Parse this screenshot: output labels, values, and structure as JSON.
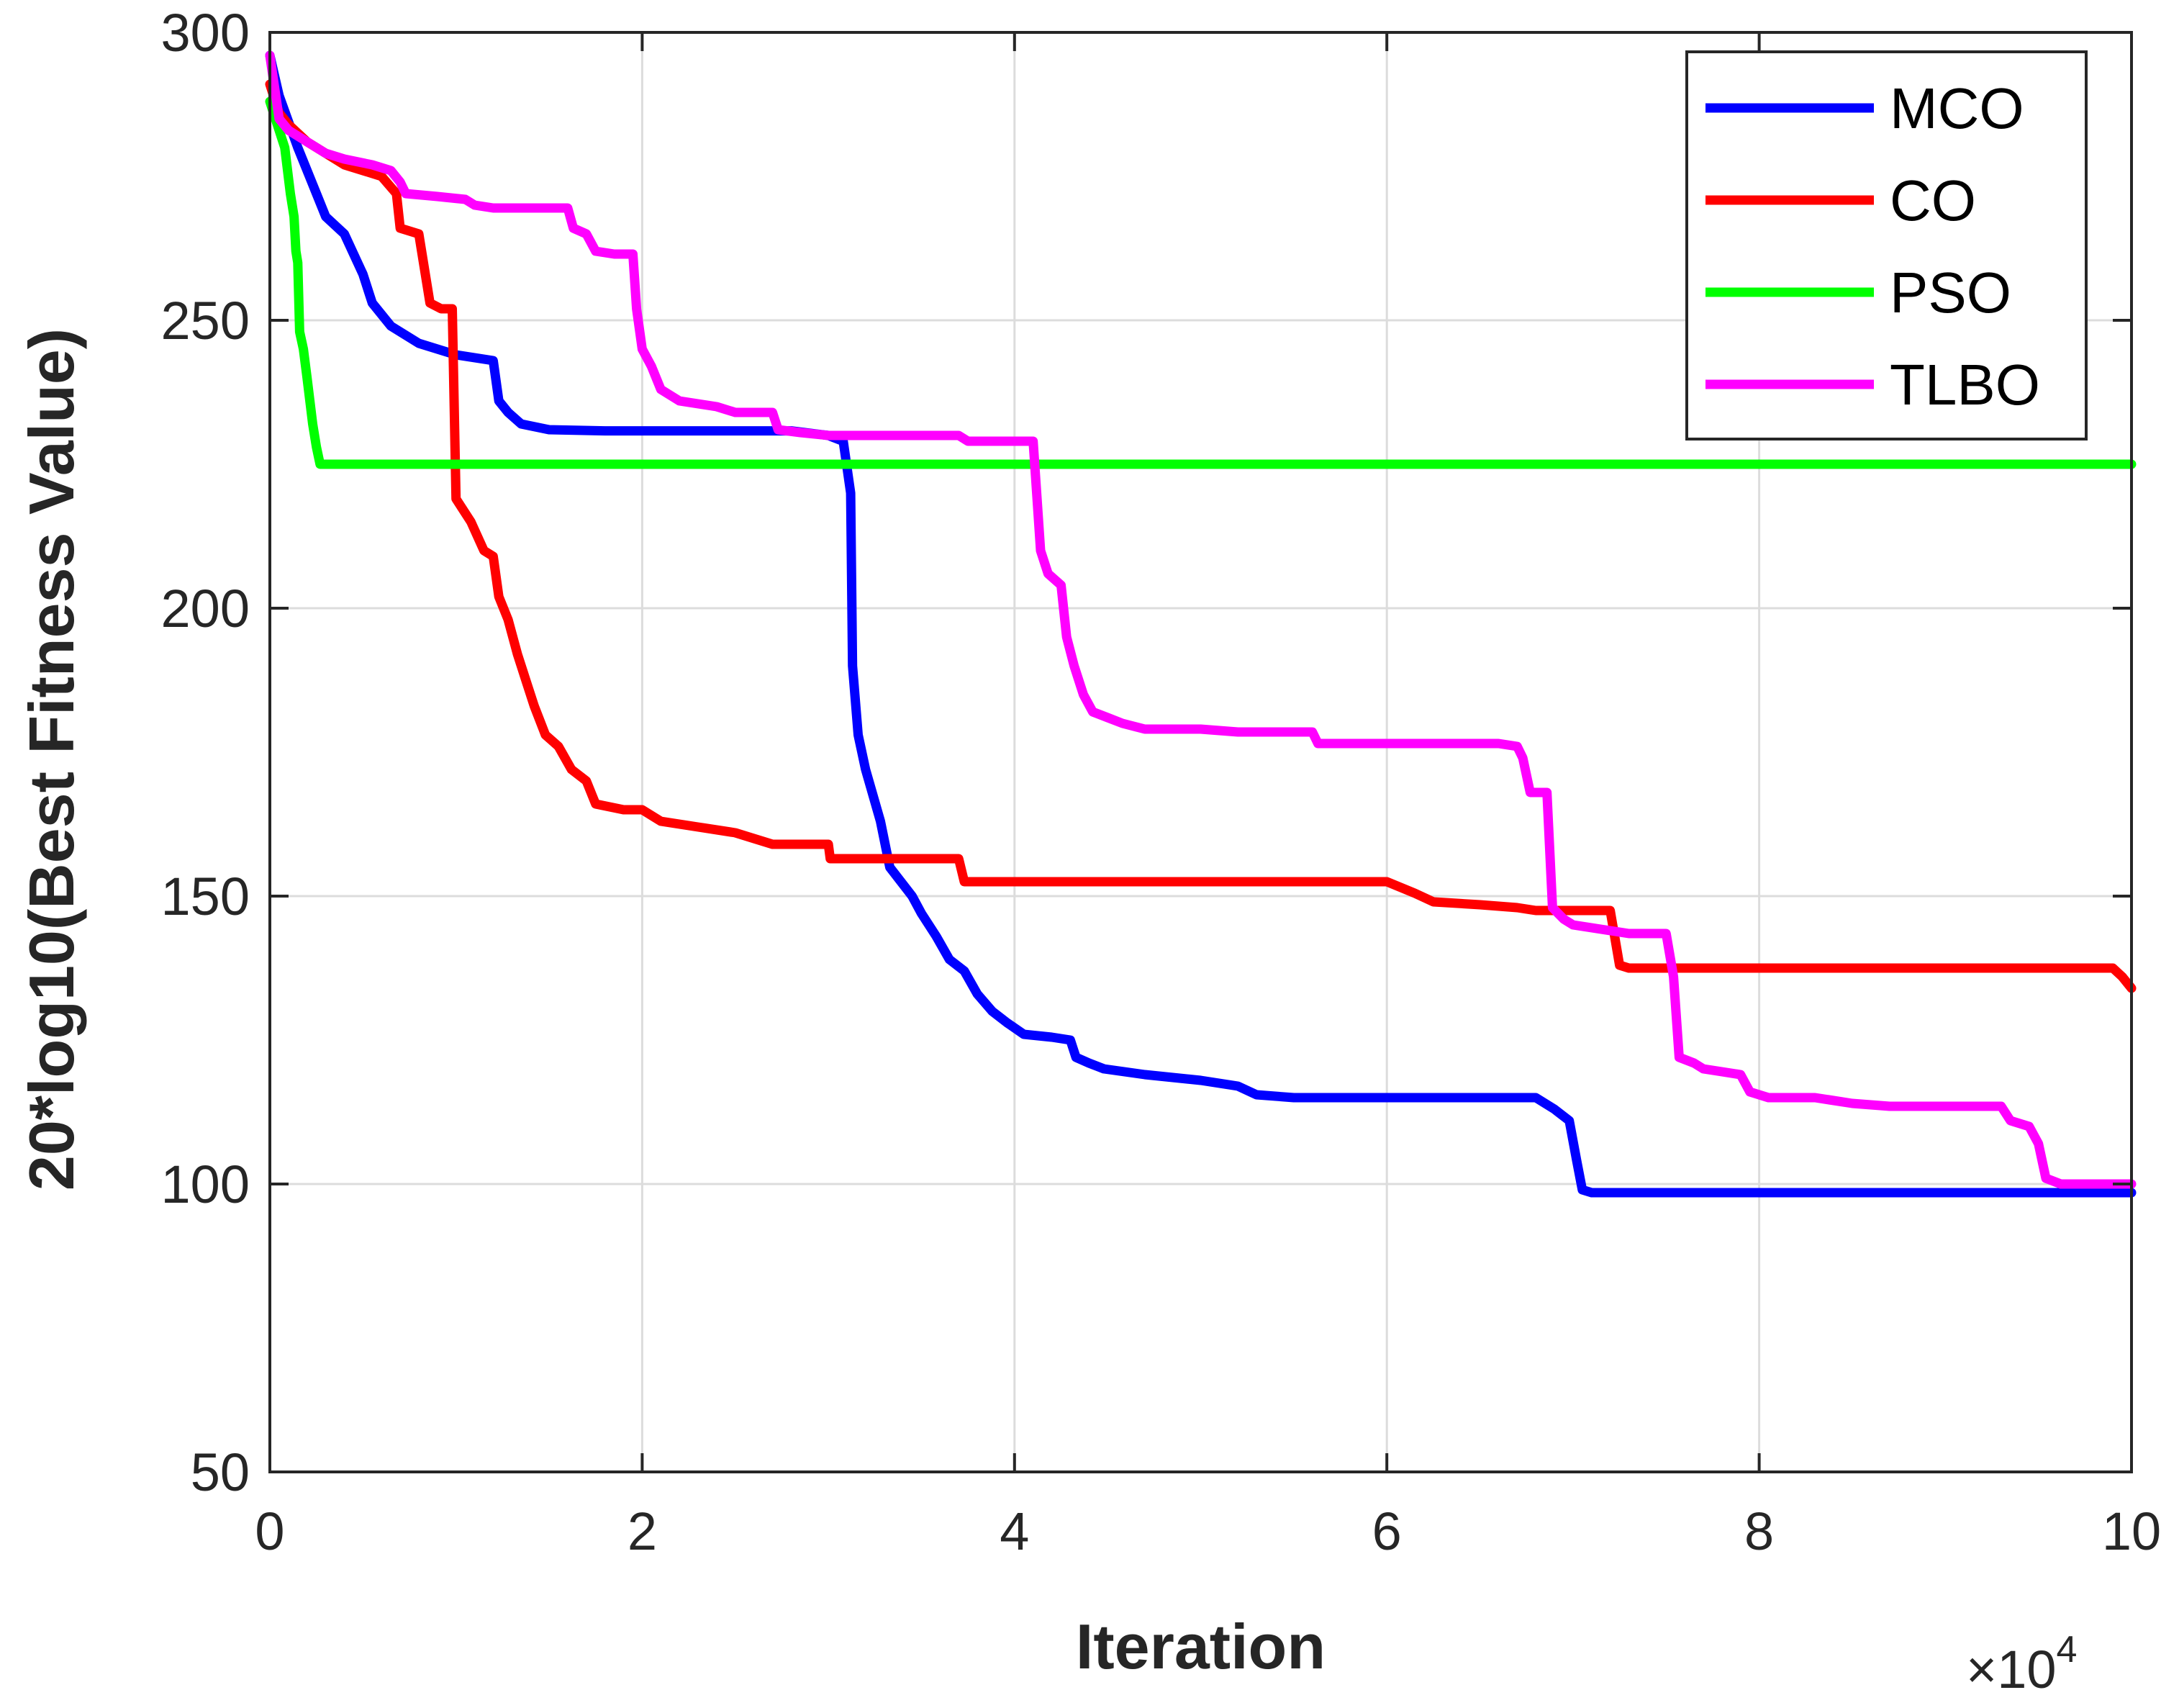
{
  "chart_data": {
    "type": "line",
    "xlabel": "Iteration",
    "ylabel": "20*log10(Best Fitness Value)",
    "xlim": [
      0,
      100000
    ],
    "ylim": [
      50,
      300
    ],
    "x_ticks": [
      0,
      20000,
      40000,
      60000,
      80000,
      100000
    ],
    "x_tick_labels": [
      "0",
      "2",
      "4",
      "6",
      "8",
      "10"
    ],
    "x_exponent_label": {
      "base": "×10",
      "power": "4"
    },
    "y_ticks": [
      50,
      100,
      150,
      200,
      250,
      300
    ],
    "y_tick_labels": [
      "50",
      "100",
      "150",
      "200",
      "250",
      "300"
    ],
    "grid": true,
    "legend_position": "top-right",
    "series": [
      {
        "name": "MCO",
        "color": "#0000ff",
        "points": [
          [
            0,
            296
          ],
          [
            500,
            289
          ],
          [
            1500,
            280
          ],
          [
            2500,
            272
          ],
          [
            3000,
            268
          ],
          [
            4000,
            265
          ],
          [
            5000,
            258
          ],
          [
            5500,
            253
          ],
          [
            6500,
            249
          ],
          [
            8000,
            246
          ],
          [
            10000,
            244
          ],
          [
            12000,
            243
          ],
          [
            12300,
            236
          ],
          [
            12800,
            234
          ],
          [
            13500,
            232
          ],
          [
            15000,
            231
          ],
          [
            18000,
            230.8
          ],
          [
            20000,
            230.8
          ],
          [
            25000,
            230.8
          ],
          [
            28000,
            230.8
          ],
          [
            30000,
            230
          ],
          [
            30800,
            229
          ],
          [
            31200,
            220
          ],
          [
            31300,
            190
          ],
          [
            31600,
            178
          ],
          [
            32000,
            172
          ],
          [
            32800,
            163
          ],
          [
            33300,
            155
          ],
          [
            34500,
            150
          ],
          [
            35000,
            147
          ],
          [
            35800,
            143
          ],
          [
            36500,
            139
          ],
          [
            37300,
            137
          ],
          [
            38000,
            133
          ],
          [
            38800,
            130
          ],
          [
            39600,
            128
          ],
          [
            40500,
            126
          ],
          [
            42000,
            125.5
          ],
          [
            43000,
            125
          ],
          [
            43300,
            122
          ],
          [
            44000,
            121
          ],
          [
            44800,
            120
          ],
          [
            47000,
            119
          ],
          [
            50000,
            118
          ],
          [
            52000,
            117
          ],
          [
            53000,
            115.5
          ],
          [
            55000,
            115
          ],
          [
            60000,
            115
          ],
          [
            65000,
            115
          ],
          [
            68000,
            115
          ],
          [
            69000,
            113
          ],
          [
            69800,
            111
          ],
          [
            70200,
            104
          ],
          [
            70500,
            99
          ],
          [
            71000,
            98.5
          ],
          [
            75000,
            98.5
          ],
          [
            80000,
            98.5
          ],
          [
            90000,
            98.5
          ],
          [
            100000,
            98.5
          ]
        ]
      },
      {
        "name": "CO",
        "color": "#ff0000",
        "points": [
          [
            0,
            291
          ],
          [
            500,
            286
          ],
          [
            1000,
            284
          ],
          [
            2000,
            281
          ],
          [
            3000,
            279
          ],
          [
            4000,
            277
          ],
          [
            5000,
            276
          ],
          [
            6000,
            275
          ],
          [
            6800,
            272
          ],
          [
            7000,
            266
          ],
          [
            8000,
            265
          ],
          [
            8600,
            253
          ],
          [
            9200,
            252
          ],
          [
            9800,
            252
          ],
          [
            10000,
            219
          ],
          [
            10800,
            215
          ],
          [
            11500,
            210
          ],
          [
            12000,
            209
          ],
          [
            12300,
            202
          ],
          [
            12800,
            198
          ],
          [
            13300,
            192
          ],
          [
            13800,
            187
          ],
          [
            14200,
            183
          ],
          [
            14800,
            178
          ],
          [
            15500,
            176
          ],
          [
            16200,
            172
          ],
          [
            17000,
            170
          ],
          [
            17500,
            166
          ],
          [
            19000,
            165
          ],
          [
            20000,
            165
          ],
          [
            21000,
            163
          ],
          [
            23000,
            162
          ],
          [
            25000,
            161
          ],
          [
            26000,
            160
          ],
          [
            27000,
            159
          ],
          [
            30000,
            159
          ],
          [
            30100,
            156.5
          ],
          [
            32000,
            156.5
          ],
          [
            35000,
            156.5
          ],
          [
            37000,
            156.5
          ],
          [
            37300,
            152.5
          ],
          [
            40000,
            152.5
          ],
          [
            50000,
            152.5
          ],
          [
            60000,
            152.5
          ],
          [
            61500,
            150.5
          ],
          [
            62500,
            149
          ],
          [
            65000,
            148.5
          ],
          [
            67000,
            148
          ],
          [
            68000,
            147.5
          ],
          [
            72000,
            147.5
          ],
          [
            72500,
            138
          ],
          [
            73000,
            137.5
          ],
          [
            75000,
            137.5
          ],
          [
            80000,
            137.5
          ],
          [
            90000,
            137.5
          ],
          [
            99000,
            137.5
          ],
          [
            99500,
            136
          ],
          [
            100000,
            134
          ]
        ]
      },
      {
        "name": "PSO",
        "color": "#00ff00",
        "points": [
          [
            0,
            288
          ],
          [
            500,
            283
          ],
          [
            800,
            280
          ],
          [
            1100,
            272
          ],
          [
            1300,
            268
          ],
          [
            1400,
            262
          ],
          [
            1500,
            260
          ],
          [
            1600,
            248
          ],
          [
            1800,
            245
          ],
          [
            2000,
            240
          ],
          [
            2300,
            232
          ],
          [
            2500,
            228
          ],
          [
            2700,
            225
          ],
          [
            3500,
            225
          ],
          [
            5000,
            225
          ],
          [
            10000,
            225
          ],
          [
            20000,
            225
          ],
          [
            30000,
            225
          ],
          [
            40000,
            225
          ],
          [
            50000,
            225
          ],
          [
            60000,
            225
          ],
          [
            70000,
            225
          ],
          [
            80000,
            225
          ],
          [
            90000,
            225
          ],
          [
            100000,
            225
          ]
        ]
      },
      {
        "name": "TLBO",
        "color": "#ff00ff",
        "points": [
          [
            0,
            296
          ],
          [
            500,
            285
          ],
          [
            1000,
            283
          ],
          [
            2000,
            281
          ],
          [
            3000,
            279
          ],
          [
            4000,
            278
          ],
          [
            5500,
            277
          ],
          [
            6500,
            276
          ],
          [
            7000,
            274
          ],
          [
            7300,
            272
          ],
          [
            9000,
            271.5
          ],
          [
            10500,
            271
          ],
          [
            11000,
            270
          ],
          [
            12000,
            269.5
          ],
          [
            16000,
            269.5
          ],
          [
            16300,
            266
          ],
          [
            17000,
            265
          ],
          [
            17500,
            262
          ],
          [
            18500,
            261.5
          ],
          [
            19500,
            261.5
          ],
          [
            19700,
            252
          ],
          [
            20000,
            245
          ],
          [
            20500,
            242
          ],
          [
            21000,
            238
          ],
          [
            22000,
            236
          ],
          [
            24000,
            235
          ],
          [
            25000,
            234
          ],
          [
            27000,
            234
          ],
          [
            27300,
            231
          ],
          [
            28500,
            230.5
          ],
          [
            30000,
            230
          ],
          [
            33000,
            230
          ],
          [
            37000,
            230
          ],
          [
            37500,
            229
          ],
          [
            41000,
            229
          ],
          [
            41400,
            210
          ],
          [
            41800,
            206
          ],
          [
            42500,
            204
          ],
          [
            42800,
            195
          ],
          [
            43200,
            190
          ],
          [
            43700,
            185
          ],
          [
            44200,
            182
          ],
          [
            45000,
            181
          ],
          [
            45800,
            180
          ],
          [
            47000,
            179
          ],
          [
            50000,
            179
          ],
          [
            52000,
            178.5
          ],
          [
            54000,
            178.5
          ],
          [
            56000,
            178.5
          ],
          [
            56300,
            176.5
          ],
          [
            60000,
            176.5
          ],
          [
            63000,
            176.5
          ],
          [
            66000,
            176.5
          ],
          [
            67000,
            176
          ],
          [
            67300,
            174
          ],
          [
            67700,
            168
          ],
          [
            68600,
            168
          ],
          [
            68900,
            148
          ],
          [
            69500,
            146
          ],
          [
            70000,
            145
          ],
          [
            71000,
            144.5
          ],
          [
            72000,
            144
          ],
          [
            73000,
            143.5
          ],
          [
            75000,
            143.5
          ],
          [
            75400,
            136
          ],
          [
            75700,
            122
          ],
          [
            76500,
            121
          ],
          [
            77000,
            120
          ],
          [
            78000,
            119.5
          ],
          [
            79000,
            119
          ],
          [
            79500,
            116
          ],
          [
            80500,
            115
          ],
          [
            83000,
            115
          ],
          [
            85000,
            114
          ],
          [
            87000,
            113.5
          ],
          [
            90000,
            113.5
          ],
          [
            93000,
            113.5
          ],
          [
            93500,
            111
          ],
          [
            94500,
            110
          ],
          [
            95000,
            107
          ],
          [
            95400,
            101
          ],
          [
            96200,
            100
          ],
          [
            97000,
            100
          ],
          [
            100000,
            100
          ]
        ]
      }
    ]
  }
}
